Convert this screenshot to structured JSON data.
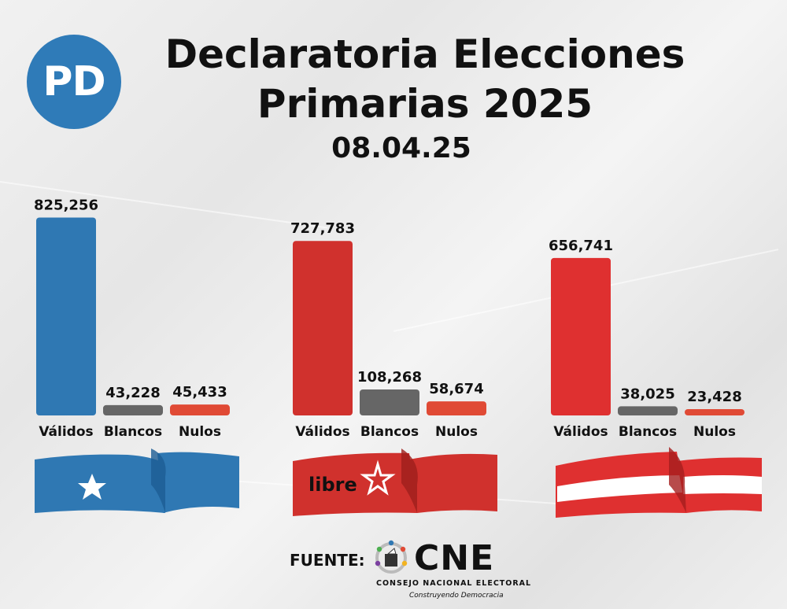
{
  "logo_text": "PD",
  "title_line1": "Declaratoria Elecciones",
  "title_line2": "Primarias 2025",
  "date": "08.04.25",
  "colors": {
    "nacional": "#2f78b3",
    "libre": "#d0312d",
    "liberal": "#df3030",
    "blancos": "#666666",
    "nulos": "#e04a35"
  },
  "chart_data": [
    {
      "type": "bar",
      "categories": [
        "Válidos",
        "Blancos",
        "Nulos"
      ],
      "values": [
        825256,
        43228,
        45433
      ],
      "value_labels": [
        "825,256",
        "43,228",
        "45,433"
      ],
      "bar_colors": [
        "#2f78b3",
        "#666666",
        "#e04a35"
      ],
      "flag": "star-flag-icon",
      "ylim": [
        0,
        900000
      ]
    },
    {
      "type": "bar",
      "categories": [
        "Válidos",
        "Blancos",
        "Nulos"
      ],
      "values": [
        727783,
        108268,
        58674
      ],
      "value_labels": [
        "727,783",
        "108,268",
        "58,674"
      ],
      "bar_colors": [
        "#d0312d",
        "#666666",
        "#e04a35"
      ],
      "flag": "libre-flag-icon",
      "flag_text": "libre",
      "ylim": [
        0,
        900000
      ]
    },
    {
      "type": "bar",
      "categories": [
        "Válidos",
        "Blancos",
        "Nulos"
      ],
      "values": [
        656741,
        38025,
        23428
      ],
      "value_labels": [
        "656,741",
        "38,025",
        "23,428"
      ],
      "bar_colors": [
        "#df3030",
        "#666666",
        "#e04a35"
      ],
      "flag": "striped-flag-icon",
      "ylim": [
        0,
        900000
      ]
    }
  ],
  "footer": {
    "source_label": "FUENTE:",
    "cne_name": "CNE",
    "cne_subtitle": "CONSEJO NACIONAL ELECTORAL",
    "cne_tagline": "Construyendo Democracia"
  }
}
